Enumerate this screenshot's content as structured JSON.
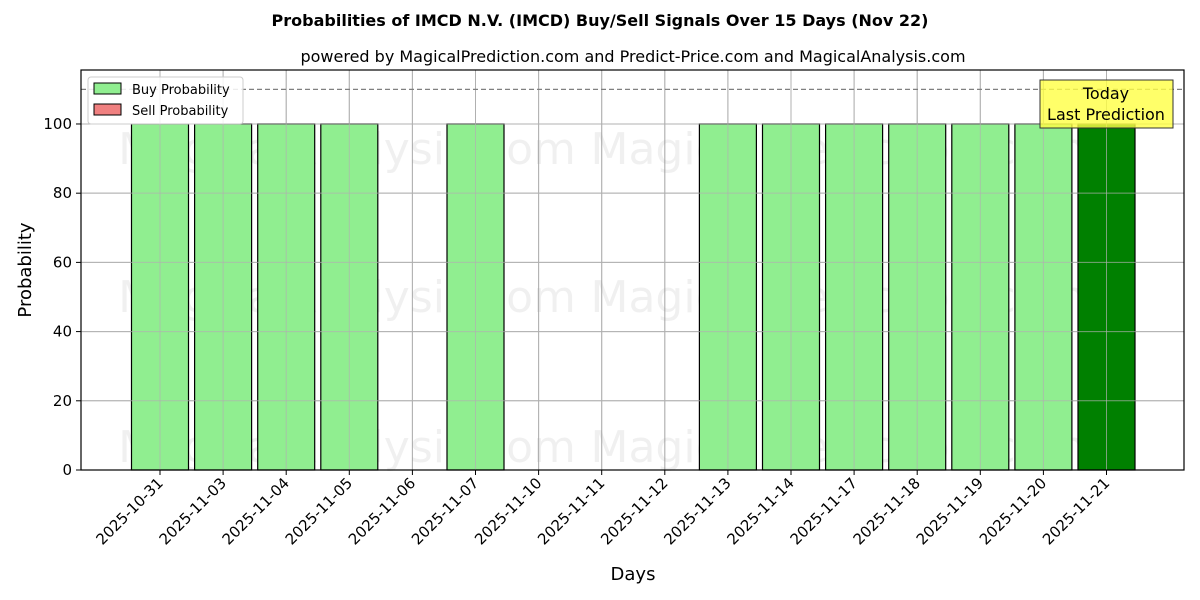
{
  "chart_data": {
    "type": "bar",
    "title": "Probabilities of IMCD N.V. (IMCD) Buy/Sell Signals Over 15 Days (Nov 22)",
    "subtitle": "powered by MagicalPrediction.com and Predict-Price.com and MagicalAnalysis.com",
    "xlabel": "Days",
    "ylabel": "Probability",
    "ylim": [
      0,
      115.6
    ],
    "yticks": [
      0,
      20,
      40,
      60,
      80,
      100
    ],
    "grid": true,
    "legend_position": "upper left",
    "categories": [
      "2025-10-31",
      "2025-11-03",
      "2025-11-04",
      "2025-11-05",
      "2025-11-06",
      "2025-11-07",
      "2025-11-10",
      "2025-11-11",
      "2025-11-12",
      "2025-11-13",
      "2025-11-14",
      "2025-11-17",
      "2025-11-18",
      "2025-11-19",
      "2025-11-20",
      "2025-11-21"
    ],
    "series": [
      {
        "name": "Buy Probability",
        "color": "#90ee90",
        "values": [
          100,
          100,
          100,
          100,
          0,
          100,
          0,
          0,
          0,
          100,
          100,
          100,
          100,
          100,
          100,
          100
        ]
      },
      {
        "name": "Sell Probability",
        "color": "#f08080",
        "values": [
          0,
          0,
          0,
          0,
          0,
          0,
          0,
          0,
          0,
          0,
          0,
          0,
          0,
          0,
          0,
          0
        ]
      }
    ],
    "highlight": {
      "category": "2025-11-21",
      "color": "#008000"
    },
    "reference_line": {
      "y": 110,
      "style": "dashed",
      "color": "#808080"
    },
    "annotation": {
      "line1": "Today",
      "line2": "Last Prediction",
      "background": "#ffff44"
    },
    "watermarks": [
      "MagicalAnalysis.com",
      "MagicalPrediction.com"
    ]
  }
}
